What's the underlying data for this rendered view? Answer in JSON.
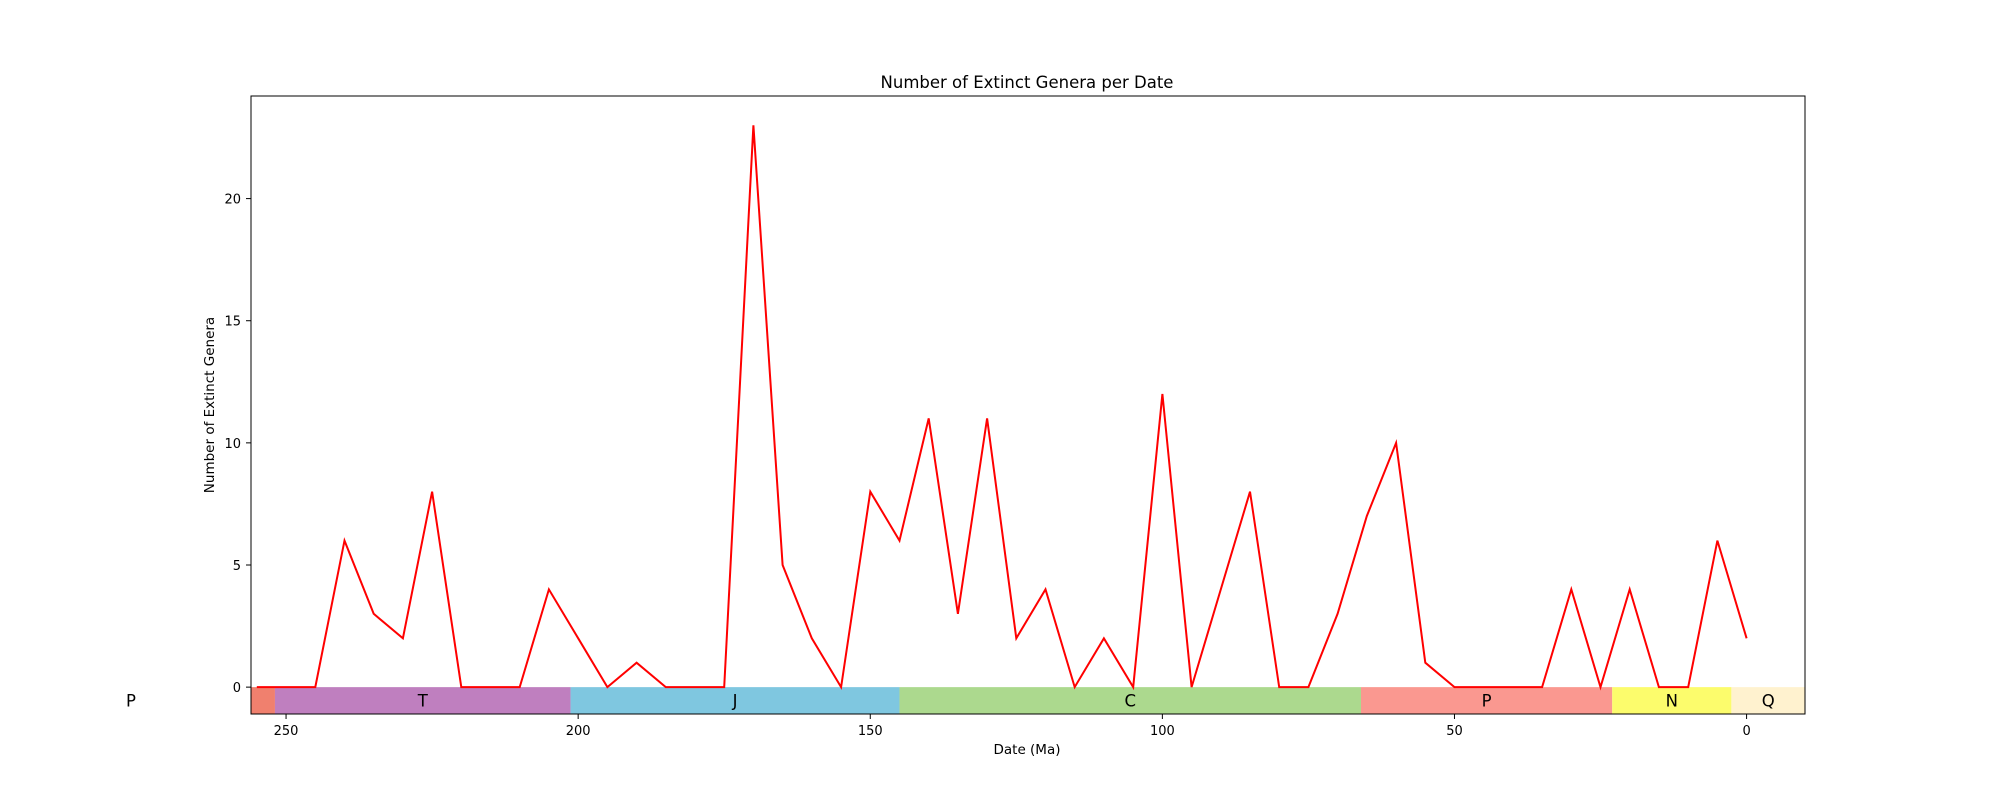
{
  "chart_data": {
    "type": "line",
    "title": "Number of Extinct Genera per Date",
    "xlabel": "Date (Ma)",
    "ylabel": "Number of Extinct Genera",
    "x_inverted": true,
    "xlim": [
      256,
      -10
    ],
    "ylim": [
      -1.1,
      24.2
    ],
    "x_ticks": [
      250,
      200,
      150,
      100,
      50,
      0
    ],
    "y_ticks": [
      0,
      5,
      10,
      15,
      20
    ],
    "grid": false,
    "series": [
      {
        "color": "#ff0000",
        "x": [
          255,
          250,
          245,
          240,
          235,
          230,
          225,
          220,
          215,
          210,
          205,
          200,
          195,
          190,
          185,
          180,
          175,
          170,
          165,
          160,
          155,
          150,
          145,
          140,
          135,
          130,
          125,
          120,
          115,
          110,
          105,
          100,
          95,
          90,
          85,
          80,
          75,
          70,
          65,
          60,
          55,
          50,
          45,
          40,
          35,
          30,
          25,
          20,
          15,
          10,
          5,
          0
        ],
        "y": [
          0,
          0,
          0,
          6,
          3,
          2,
          8,
          0,
          0,
          0,
          4,
          2,
          0,
          1,
          0,
          0,
          0,
          23,
          5,
          2,
          0,
          8,
          6,
          11,
          3,
          11,
          2,
          4,
          0,
          2,
          0,
          12,
          0,
          4,
          8,
          0,
          0,
          3,
          7,
          10,
          1,
          0,
          0,
          0,
          0,
          4,
          0,
          4,
          0,
          0,
          6,
          2
        ]
      }
    ],
    "periods": [
      {
        "label": "P",
        "start": 298.9,
        "end": 251.9,
        "color": "#f0806e"
      },
      {
        "label": "T",
        "start": 251.9,
        "end": 201.3,
        "color": "#bf7fbf"
      },
      {
        "label": "J",
        "start": 201.3,
        "end": 145.0,
        "color": "#7fc7e0"
      },
      {
        "label": "C",
        "start": 145.0,
        "end": 66.0,
        "color": "#acd98e"
      },
      {
        "label": "P",
        "start": 66.0,
        "end": 23.0,
        "color": "#fa9890"
      },
      {
        "label": "N",
        "start": 23.0,
        "end": 2.6,
        "color": "#fcfc6c"
      },
      {
        "label": "Q",
        "start": 2.6,
        "end": -10,
        "color": "#fff2cf"
      }
    ]
  }
}
